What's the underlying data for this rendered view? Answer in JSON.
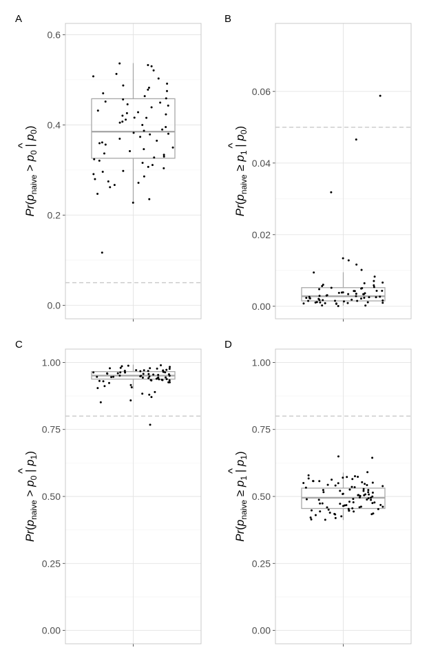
{
  "chart_data": [
    {
      "type": "box",
      "panel": "A",
      "ylabel": {
        "pr": "Pr",
        "hat": "^",
        "p": "p",
        "p_sub": "naive",
        "rel": ">",
        "p2": "p",
        "p2_sub": "0",
        "bar": "|",
        "p3": "p",
        "p3_sub": "0"
      },
      "ylim": [
        -0.03,
        0.625
      ],
      "yticks": [
        0.0,
        0.2,
        0.4,
        0.6
      ],
      "ytick_labels": [
        "0.0",
        "0.2",
        "0.4",
        "0.6"
      ],
      "reference_line": 0.05,
      "box": {
        "whisker_low": 0.226,
        "q1": 0.326,
        "median": 0.385,
        "q3": 0.458,
        "whisker_high": 0.537
      },
      "outliers": [
        0.118
      ],
      "points": [
        0.509,
        0.512,
        0.53,
        0.537,
        0.521,
        0.533,
        0.502,
        0.488,
        0.481,
        0.478,
        0.476,
        0.47,
        0.492,
        0.464,
        0.46,
        0.456,
        0.449,
        0.451,
        0.445,
        0.443,
        0.44,
        0.431,
        0.428,
        0.425,
        0.422,
        0.42,
        0.417,
        0.415,
        0.411,
        0.407,
        0.405,
        0.399,
        0.395,
        0.39,
        0.387,
        0.383,
        0.38,
        0.378,
        0.373,
        0.369,
        0.366,
        0.362,
        0.359,
        0.355,
        0.349,
        0.345,
        0.342,
        0.338,
        0.335,
        0.331,
        0.327,
        0.323,
        0.319,
        0.315,
        0.311,
        0.306,
        0.303,
        0.299,
        0.296,
        0.292,
        0.287,
        0.281,
        0.276,
        0.272,
        0.266,
        0.262,
        0.248,
        0.236,
        0.226
      ]
    },
    {
      "type": "box",
      "panel": "B",
      "ylabel": {
        "pr": "Pr",
        "hat": "^",
        "p": "p",
        "p_sub": "naive",
        "rel": "≥",
        "p2": "p",
        "p2_sub": "1",
        "bar": "|",
        "p3": "p",
        "p3_sub": "0"
      },
      "ylim": [
        -0.0035,
        0.079
      ],
      "yticks": [
        0.0,
        0.02,
        0.04,
        0.06
      ],
      "ytick_labels": [
        "0.00",
        "0.02",
        "0.04",
        "0.06"
      ],
      "reference_line": 0.05,
      "box": {
        "whisker_low": 0.0002,
        "q1": 0.0015,
        "median": 0.0028,
        "q3": 0.0052,
        "whisker_high": 0.0095
      },
      "outliers": [
        0.0589,
        0.0466,
        0.0318,
        0.0134,
        0.0129,
        0.0117,
        0.0103
      ],
      "points": [
        0.0095,
        0.0081,
        0.0072,
        0.0068,
        0.0064,
        0.0061,
        0.0058,
        0.0056,
        0.0054,
        0.0052,
        0.005,
        0.0049,
        0.0047,
        0.0045,
        0.0044,
        0.0042,
        0.0041,
        0.0039,
        0.0038,
        0.0037,
        0.0036,
        0.0035,
        0.0034,
        0.0033,
        0.0032,
        0.0031,
        0.003,
        0.0029,
        0.0028,
        0.0027,
        0.0027,
        0.0026,
        0.0025,
        0.0024,
        0.0023,
        0.0022,
        0.0021,
        0.002,
        0.002,
        0.0019,
        0.0018,
        0.0017,
        0.0016,
        0.0016,
        0.0015,
        0.0014,
        0.0013,
        0.0012,
        0.0012,
        0.0011,
        0.001,
        0.0009,
        0.0009,
        0.0008,
        0.0007,
        0.0006,
        0.0005,
        0.0004,
        0.0003,
        0.0002
      ]
    },
    {
      "type": "box",
      "panel": "C",
      "ylabel": {
        "pr": "Pr",
        "hat": "^",
        "p": "p",
        "p_sub": "naive",
        "rel": ">",
        "p2": "p",
        "p2_sub": "0",
        "bar": "|",
        "p3": "p",
        "p3_sub": "1"
      },
      "ylim": [
        -0.05,
        1.05
      ],
      "yticks": [
        0.0,
        0.25,
        0.5,
        0.75,
        1.0
      ],
      "ytick_labels": [
        "0.00",
        "0.25",
        "0.50",
        "0.75",
        "1.00"
      ],
      "reference_line": 0.8,
      "box": {
        "whisker_low": 0.902,
        "q1": 0.938,
        "median": 0.951,
        "q3": 0.966,
        "whisker_high": 0.992
      },
      "outliers": [
        0.852,
        0.86,
        0.871,
        0.879,
        0.886,
        0.892,
        0.768
      ],
      "points": [
        0.992,
        0.988,
        0.986,
        0.984,
        0.982,
        0.98,
        0.978,
        0.977,
        0.975,
        0.974,
        0.972,
        0.971,
        0.97,
        0.969,
        0.968,
        0.967,
        0.966,
        0.965,
        0.964,
        0.963,
        0.962,
        0.961,
        0.96,
        0.959,
        0.958,
        0.957,
        0.956,
        0.955,
        0.954,
        0.953,
        0.952,
        0.951,
        0.95,
        0.949,
        0.948,
        0.947,
        0.946,
        0.945,
        0.944,
        0.943,
        0.942,
        0.941,
        0.94,
        0.939,
        0.938,
        0.937,
        0.936,
        0.935,
        0.934,
        0.933,
        0.932,
        0.931,
        0.93,
        0.928,
        0.925,
        0.921,
        0.916,
        0.911,
        0.906,
        0.902
      ]
    },
    {
      "type": "box",
      "panel": "D",
      "ylabel": {
        "pr": "Pr",
        "hat": "^",
        "p": "p",
        "p_sub": "naive",
        "rel": "≥",
        "p2": "p",
        "p2_sub": "1",
        "bar": "|",
        "p3": "p",
        "p3_sub": "1"
      },
      "ylim": [
        -0.05,
        1.05
      ],
      "yticks": [
        0.0,
        0.25,
        0.5,
        0.75,
        1.0
      ],
      "ytick_labels": [
        "0.00",
        "0.25",
        "0.50",
        "0.75",
        "1.00"
      ],
      "reference_line": 0.8,
      "box": {
        "whisker_low": 0.412,
        "q1": 0.455,
        "median": 0.495,
        "q3": 0.531,
        "whisker_high": 0.589
      },
      "outliers": [
        0.647,
        0.645
      ],
      "points": [
        0.589,
        0.58,
        0.575,
        0.572,
        0.568,
        0.565,
        0.562,
        0.558,
        0.555,
        0.552,
        0.549,
        0.546,
        0.543,
        0.54,
        0.537,
        0.534,
        0.531,
        0.529,
        0.526,
        0.523,
        0.52,
        0.518,
        0.515,
        0.512,
        0.509,
        0.507,
        0.504,
        0.501,
        0.498,
        0.496,
        0.493,
        0.49,
        0.488,
        0.485,
        0.482,
        0.48,
        0.477,
        0.474,
        0.472,
        0.469,
        0.466,
        0.463,
        0.461,
        0.458,
        0.456,
        0.453,
        0.451,
        0.448,
        0.445,
        0.442,
        0.44,
        0.437,
        0.434,
        0.431,
        0.428,
        0.425,
        0.422,
        0.419,
        0.416,
        0.412,
        0.556,
        0.548,
        0.536,
        0.522,
        0.511,
        0.503,
        0.492,
        0.478,
        0.467,
        0.459,
        0.447,
        0.436,
        0.462,
        0.474,
        0.506,
        0.517,
        0.528,
        0.541,
        0.553,
        0.566,
        0.571,
        0.499,
        0.488,
        0.452,
        0.444
      ]
    }
  ]
}
